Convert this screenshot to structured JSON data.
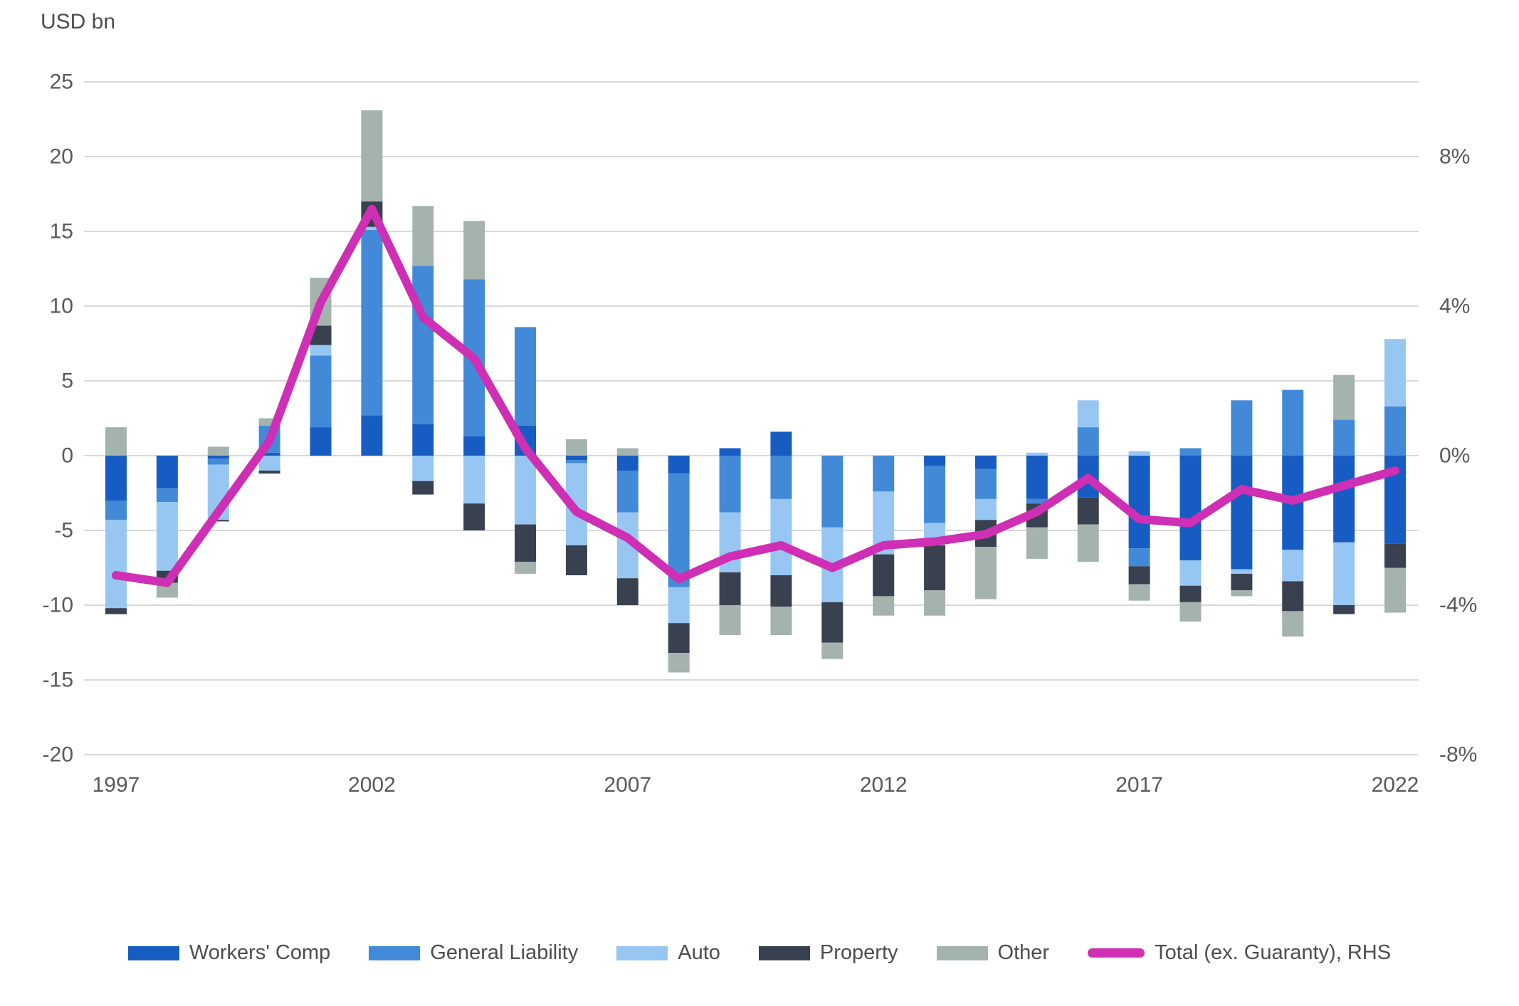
{
  "title": "USD bn",
  "colors": {
    "workers_comp": "#175cc2",
    "general_liability": "#428ad8",
    "auto": "#97c6f3",
    "property": "#394150",
    "other": "#a5b3ae",
    "total_line": "#ce2fb4",
    "gridline": "#d9d9d9",
    "tick_text": "#595959"
  },
  "chart_data": {
    "type": "bar",
    "subtype": "stacked-bars-with-rhs-line",
    "title": "USD bn",
    "categories": [
      1997,
      1998,
      1999,
      2000,
      2001,
      2002,
      2003,
      2004,
      2005,
      2006,
      2007,
      2008,
      2009,
      2010,
      2011,
      2012,
      2013,
      2014,
      2015,
      2016,
      2017,
      2018,
      2019,
      2020,
      2021,
      2022
    ],
    "series": [
      {
        "name": "Workers' Comp",
        "color_key": "workers_comp",
        "values": [
          -3.0,
          -2.2,
          -0.2,
          0.2,
          1.9,
          2.7,
          2.1,
          1.3,
          2.0,
          -0.3,
          -1.0,
          -1.2,
          0.5,
          1.6,
          0,
          0,
          -0.7,
          -0.9,
          -2.9,
          -2.8,
          -6.2,
          -7.0,
          -7.6,
          -6.3,
          -5.8,
          -5.9
        ]
      },
      {
        "name": "General Liability",
        "color_key": "general_liability",
        "values": [
          -1.3,
          -0.9,
          -0.4,
          1.8,
          4.8,
          12.4,
          10.6,
          10.5,
          6.6,
          -0.2,
          -2.8,
          -7.6,
          -3.8,
          -2.9,
          -4.8,
          -2.4,
          -3.8,
          -2.0,
          -0.3,
          1.9,
          -1.2,
          0.5,
          3.7,
          4.4,
          2.4,
          3.3
        ]
      },
      {
        "name": "Auto",
        "color_key": "auto",
        "values": [
          -5.9,
          -4.6,
          -3.7,
          -1.0,
          0.7,
          0.2,
          -1.7,
          -3.2,
          -4.6,
          -5.5,
          -4.4,
          -2.4,
          -4.0,
          -5.1,
          -5.0,
          -4.2,
          -1.5,
          -1.4,
          0.2,
          1.8,
          0.3,
          -1.7,
          -0.3,
          -2.1,
          -4.2,
          4.5
        ]
      },
      {
        "name": "Property",
        "color_key": "property",
        "values": [
          -0.4,
          -0.8,
          -0.1,
          -0.2,
          1.3,
          1.7,
          -0.9,
          -1.8,
          -2.5,
          -2.0,
          -1.8,
          -2.0,
          -2.2,
          -2.1,
          -2.7,
          -2.8,
          -3.0,
          -1.8,
          -1.6,
          -1.8,
          -1.2,
          -1.1,
          -1.1,
          -2.0,
          -0.6,
          -1.6
        ]
      },
      {
        "name": "Other",
        "color_key": "other",
        "values": [
          1.9,
          -1.0,
          0.6,
          0.5,
          3.2,
          6.1,
          4.0,
          3.9,
          -0.8,
          1.1,
          0.5,
          -1.3,
          -2.0,
          -1.9,
          -1.1,
          -1.3,
          -1.7,
          -3.5,
          -2.1,
          -2.5,
          -1.1,
          -1.3,
          -0.4,
          -1.7,
          3.0,
          -3.0
        ]
      }
    ],
    "line": {
      "name": "Total (ex. Guaranty), RHS",
      "axis": "right",
      "unit": "%",
      "values": [
        -3.2,
        -3.4,
        -1.5,
        0.4,
        4.1,
        6.6,
        3.7,
        2.6,
        0.2,
        -1.5,
        -2.2,
        -3.3,
        -2.7,
        -2.4,
        -3.0,
        -2.4,
        -2.3,
        -2.1,
        -1.5,
        -0.6,
        -1.7,
        -1.8,
        -0.9,
        -1.2,
        -0.8,
        -0.4
      ]
    },
    "left_axis": {
      "label": "USD bn",
      "ticks": [
        25,
        20,
        15,
        10,
        5,
        0,
        -5,
        -10,
        -15,
        -20
      ],
      "range": [
        -20,
        25
      ],
      "grid": true
    },
    "right_axis": {
      "tick_labels": [
        "8%",
        "4%",
        "0%",
        "-4%",
        "-8%"
      ],
      "tick_values": [
        8,
        4,
        0,
        -4,
        -8
      ],
      "range": [
        -8,
        10
      ]
    },
    "x_tick_labels": [
      "1997",
      "2002",
      "2007",
      "2012",
      "2017",
      "2022"
    ],
    "x_tick_years": [
      1997,
      2002,
      2007,
      2012,
      2017,
      2022
    ],
    "legend_position": "bottom"
  }
}
